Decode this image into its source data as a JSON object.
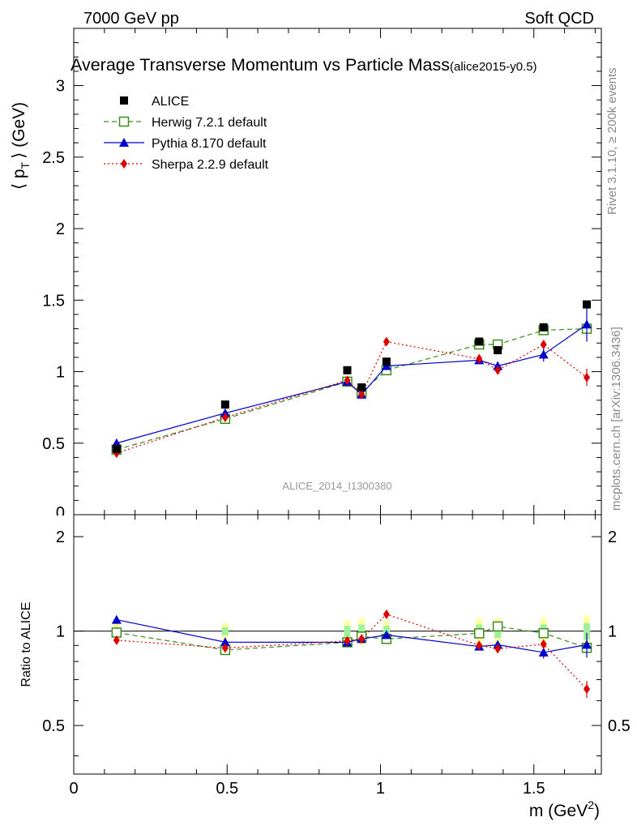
{
  "header": {
    "left": "7000 GeV pp",
    "right": "Soft QCD"
  },
  "side": {
    "rivet": "Rivet 3.1.10, ≥ 200k events",
    "mcplots": "mcplots.cern.ch [arXiv:1306.3436]"
  },
  "chart_data": {
    "type": "scatter",
    "title": "Average Transverse Momentum vs Particle Mass",
    "title_tag": "(alice2015-y0.5)",
    "watermark": "ALICE_2014_I1300380",
    "xlabel": "m (GeV",
    "xlabel_sup": "2",
    "xlabel_close": ")",
    "ylabel": "⟨ p",
    "ylabel_sub": "T",
    "ylabel_unit": "⟩ (GeV)",
    "ratio_ylabel": "Ratio to ALICE",
    "xlim": [
      0,
      1.72
    ],
    "ylim_main": [
      0,
      3.4
    ],
    "ylim_ratio": [
      0.35,
      2.35
    ],
    "ratio_log": true,
    "x_ticks": [
      0,
      0.5,
      1,
      1.5
    ],
    "x_tick_labels": [
      "0",
      "0.5",
      "1",
      "1.5"
    ],
    "main_ticks": [
      0,
      0.5,
      1,
      1.5,
      2,
      2.5,
      3
    ],
    "main_tick_labels": [
      "0",
      "0.5",
      "1",
      "1.5",
      "2",
      "2.5",
      "3"
    ],
    "ratio_ticks": [
      0.5,
      1,
      2
    ],
    "ratio_tick_labels": [
      "0.5",
      "1",
      "2"
    ],
    "x": [
      0.1396,
      0.4937,
      0.8917,
      0.9383,
      1.0195,
      1.3217,
      1.3822,
      1.5317,
      1.6725
    ],
    "data": {
      "name": "ALICE",
      "values": [
        0.46,
        0.77,
        1.01,
        0.89,
        1.07,
        1.21,
        1.15,
        1.31,
        1.47
      ],
      "band_rel": [
        0.03,
        0.03,
        0.04,
        0.05,
        0.04,
        0.05,
        0.05,
        0.05,
        0.06
      ]
    },
    "series": [
      {
        "name": "Herwig 7.2.1 default",
        "color": "#3b8c1b",
        "marker": "open-square",
        "dash": "6,4",
        "values": [
          0.455,
          0.67,
          0.93,
          0.855,
          1.01,
          1.19,
          1.19,
          1.29,
          1.3
        ],
        "errors": [
          0.005,
          0.005,
          0.01,
          0.01,
          0.01,
          0.015,
          0.015,
          0.02,
          0.04
        ]
      },
      {
        "name": "Pythia 8.170 default",
        "color": "#0000cc",
        "marker": "filled-triangle",
        "dash": "",
        "values": [
          0.5,
          0.71,
          0.93,
          0.84,
          1.04,
          1.08,
          1.04,
          1.12,
          1.33
        ],
        "errors": [
          0.005,
          0.005,
          0.01,
          0.01,
          0.01,
          0.02,
          0.03,
          0.05,
          0.12
        ]
      },
      {
        "name": "Sherpa 2.2.9 default",
        "color": "#dd0000",
        "marker": "filled-diamond",
        "dash": "2,3",
        "values": [
          0.43,
          0.68,
          0.94,
          0.84,
          1.21,
          1.09,
          1.01,
          1.19,
          0.96
        ],
        "errors": [
          0.005,
          0.005,
          0.01,
          0.01,
          0.01,
          0.02,
          0.02,
          0.03,
          0.06
        ]
      }
    ]
  }
}
